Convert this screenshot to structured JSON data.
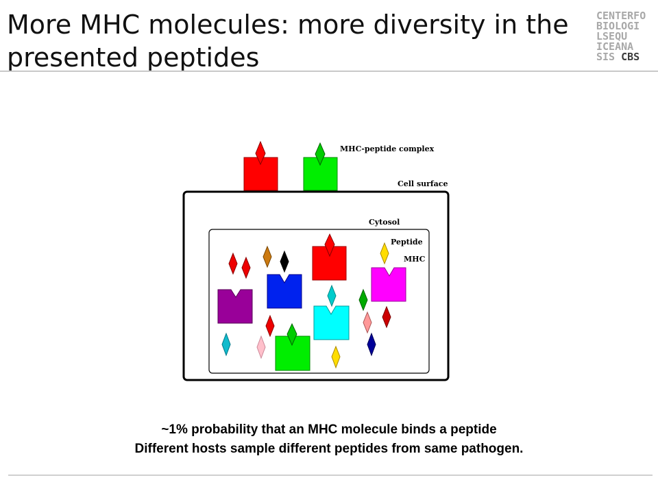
{
  "slide": {
    "title_line1": "More MHC molecules: more diversity in the",
    "title_line2": "presented peptides"
  },
  "logo": {
    "rows": [
      "CENTERFO",
      "BIOLOGI",
      "LSEQU",
      "ICEANA",
      "SIS"
    ],
    "brand": "CBS"
  },
  "diagram": {
    "label_complex": "MHC-peptide complex",
    "label_cell_surface": "Cell surface",
    "label_cytosol": "Cytosol",
    "label_peptide": "Peptide",
    "label_mhc": "MHC",
    "colors": {
      "red": "#ff0000",
      "green": "#00ee00",
      "blue": "#0000ee",
      "purple": "#990099",
      "magenta": "#ff00ff",
      "cyan": "#00ffff",
      "yellow": "#ffdd00"
    }
  },
  "caption": {
    "line1": "~1% probability that an MHC molecule binds a peptide",
    "line2": "Different hosts sample different peptides from same pathogen."
  }
}
